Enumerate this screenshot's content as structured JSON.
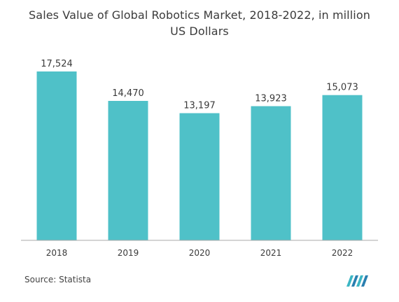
{
  "title": "Sales Value of Global Robotics Market, 2018-2022, in million US Dollars",
  "source": "Source: Statista",
  "colors": {
    "bar": "#4FC1C8",
    "axis": "#a9a9a9",
    "label": "#3a3a3a"
  },
  "chart_data": {
    "type": "bar",
    "title": "Sales Value of Global Robotics Market, 2018-2022, in million US Dollars",
    "categories": [
      "2018",
      "2019",
      "2020",
      "2021",
      "2022"
    ],
    "values": [
      17524,
      14470,
      13197,
      13923,
      15073
    ],
    "data_labels": [
      "17,524",
      "14,470",
      "13,197",
      "13,923",
      "15,073"
    ],
    "xlabel": "",
    "ylabel": "",
    "ylim": [
      0,
      17524
    ],
    "grid": false,
    "legend": "none"
  },
  "logo_icon": "mordor-intelligence-logo-icon"
}
